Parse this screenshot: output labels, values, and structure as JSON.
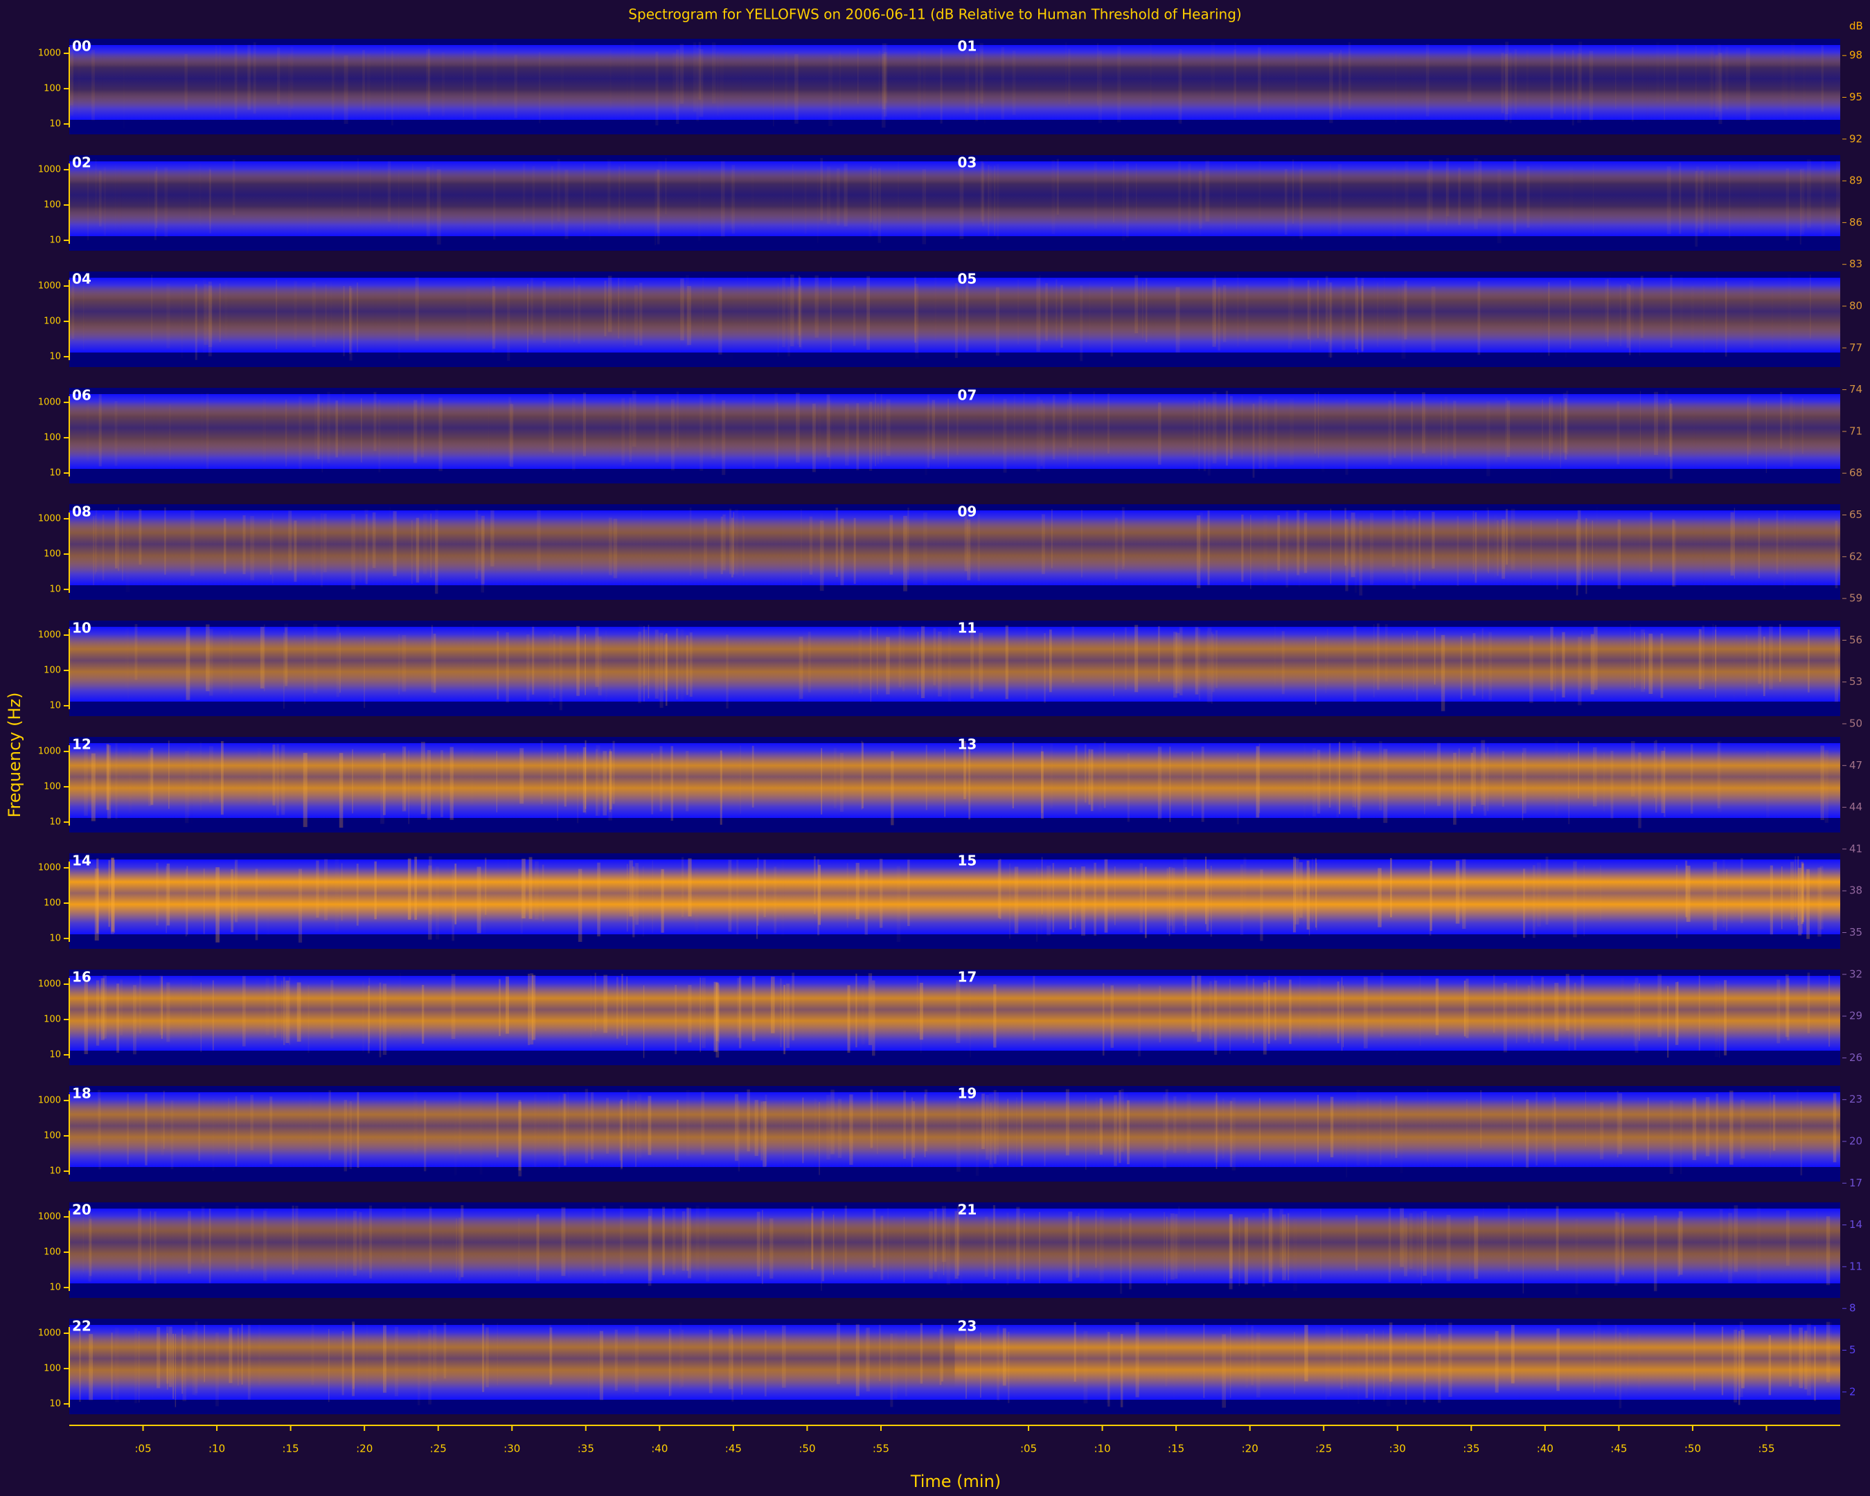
{
  "chart_data": {
    "type": "spectrogram",
    "title": "Spectrogram for YELLOFWS on 2006-06-11 (dB Relative to Human Threshold of Hearing)",
    "xlabel": "Time (min)",
    "ylabel": "Frequency (Hz)",
    "hours": [
      "00",
      "01",
      "02",
      "03",
      "04",
      "05",
      "06",
      "07",
      "08",
      "09",
      "10",
      "11",
      "12",
      "13",
      "14",
      "15",
      "16",
      "17",
      "18",
      "19",
      "20",
      "21",
      "22",
      "23"
    ],
    "xlim": [
      0,
      60
    ],
    "xticks": [
      {
        "value": 5,
        "label": ":05"
      },
      {
        "value": 10,
        "label": ":10"
      },
      {
        "value": 15,
        "label": ":15"
      },
      {
        "value": 20,
        "label": ":20"
      },
      {
        "value": 25,
        "label": ":25"
      },
      {
        "value": 30,
        "label": ":30"
      },
      {
        "value": 35,
        "label": ":35"
      },
      {
        "value": 40,
        "label": ":40"
      },
      {
        "value": 45,
        "label": ":45"
      },
      {
        "value": 50,
        "label": ":50"
      },
      {
        "value": 55,
        "label": ":55"
      }
    ],
    "ylim": [
      10,
      1000
    ],
    "yticks": [
      1000,
      100,
      10
    ],
    "log_y": true,
    "colorbar_label": "dB",
    "clim": [
      0,
      100
    ],
    "colorbar_ticks": [
      98,
      95,
      92,
      89,
      86,
      83,
      80,
      77,
      74,
      71,
      68,
      65,
      62,
      59,
      56,
      53,
      50,
      47,
      44,
      41,
      38,
      35,
      32,
      29,
      26,
      23,
      20,
      17,
      14,
      11,
      8,
      5,
      2
    ]
  }
}
